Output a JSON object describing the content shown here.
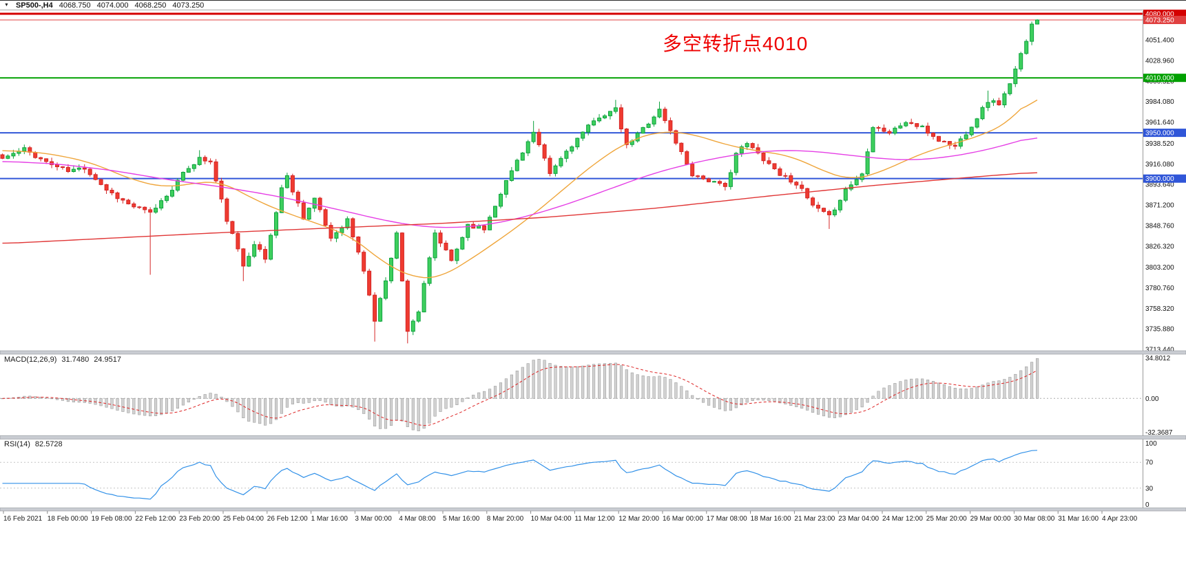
{
  "header": {
    "collapse_icon": "▼",
    "symbol_timeframe": "SP500-,H4",
    "open": "4068.750",
    "high": "4074.000",
    "low": "4068.250",
    "close": "4073.250"
  },
  "annotation": {
    "text": "多空转折点4010",
    "color": "#ee0000"
  },
  "price_axis": {
    "ticks": [
      "4051.400",
      "4028.960",
      "4006.520",
      "3984.080",
      "3961.640",
      "3938.520",
      "3916.080",
      "3893.640",
      "3871.200",
      "3848.760",
      "3826.320",
      "3803.200",
      "3780.760",
      "3758.320",
      "3735.880",
      "3713.440"
    ]
  },
  "levels": [
    {
      "name": "resistance-4080",
      "price": 4080.0,
      "label": "4080.000",
      "color": "#d40000",
      "width": 3
    },
    {
      "name": "current-price",
      "price": 4073.25,
      "label": "4073.250",
      "color": "#e04040",
      "width": 1
    },
    {
      "name": "pivot-4010",
      "price": 4010.0,
      "label": "4010.000",
      "color": "#00a000",
      "width": 2
    },
    {
      "name": "support-3950",
      "price": 3950.0,
      "label": "3950.000",
      "color": "#3056d8",
      "width": 2
    },
    {
      "name": "support-3900",
      "price": 3900.0,
      "label": "3900.000",
      "color": "#3056d8",
      "width": 2
    }
  ],
  "chart_data": {
    "type": "candlestick",
    "symbol": "SP500-",
    "timeframe": "H4",
    "visible_price_range": [
      3712,
      4083
    ],
    "n_candles": 190,
    "last_candle": {
      "open": 4068.75,
      "high": 4074.0,
      "low": 4068.25,
      "close": 4073.25
    },
    "close_waypoints": [
      [
        0,
        3922
      ],
      [
        4,
        3932
      ],
      [
        8,
        3918
      ],
      [
        12,
        3908
      ],
      [
        15,
        3912
      ],
      [
        19,
        3888
      ],
      [
        23,
        3872
      ],
      [
        27,
        3862
      ],
      [
        30,
        3882
      ],
      [
        34,
        3912
      ],
      [
        36,
        3922
      ],
      [
        38,
        3918
      ],
      [
        41,
        3855
      ],
      [
        44,
        3805
      ],
      [
        46,
        3830
      ],
      [
        48,
        3812
      ],
      [
        51,
        3890
      ],
      [
        52,
        3902
      ],
      [
        55,
        3858
      ],
      [
        57,
        3878
      ],
      [
        60,
        3835
      ],
      [
        63,
        3855
      ],
      [
        66,
        3800
      ],
      [
        68,
        3745
      ],
      [
        70,
        3790
      ],
      [
        72,
        3840
      ],
      [
        74,
        3735
      ],
      [
        76,
        3755
      ],
      [
        79,
        3840
      ],
      [
        82,
        3810
      ],
      [
        85,
        3850
      ],
      [
        88,
        3845
      ],
      [
        91,
        3885
      ],
      [
        94,
        3920
      ],
      [
        97,
        3950
      ],
      [
        100,
        3905
      ],
      [
        103,
        3930
      ],
      [
        106,
        3950
      ],
      [
        109,
        3968
      ],
      [
        112,
        3975
      ],
      [
        114,
        3935
      ],
      [
        117,
        3955
      ],
      [
        120,
        3975
      ],
      [
        123,
        3940
      ],
      [
        126,
        3905
      ],
      [
        129,
        3898
      ],
      [
        132,
        3890
      ],
      [
        134,
        3928
      ],
      [
        136,
        3938
      ],
      [
        139,
        3922
      ],
      [
        142,
        3905
      ],
      [
        145,
        3895
      ],
      [
        148,
        3870
      ],
      [
        151,
        3858
      ],
      [
        154,
        3888
      ],
      [
        157,
        3905
      ],
      [
        159,
        3958
      ],
      [
        162,
        3950
      ],
      [
        165,
        3962
      ],
      [
        168,
        3955
      ],
      [
        171,
        3942
      ],
      [
        174,
        3935
      ],
      [
        177,
        3958
      ],
      [
        180,
        3985
      ],
      [
        182,
        3982
      ],
      [
        184,
        4002
      ],
      [
        186,
        4035
      ],
      [
        188,
        4068.75
      ],
      [
        189,
        4073.25
      ]
    ],
    "wick_low_overrides": [
      [
        27,
        3795
      ],
      [
        44,
        3788
      ],
      [
        68,
        3722
      ],
      [
        74,
        3720
      ],
      [
        151,
        3845
      ]
    ],
    "wick_high_overrides": [
      [
        36,
        3931
      ],
      [
        97,
        3963
      ],
      [
        112,
        3986
      ],
      [
        120,
        3984
      ],
      [
        180,
        3996
      ]
    ],
    "moving_averages": [
      {
        "name": "ma-fast-orange",
        "color": "#efa53a",
        "waypoints": [
          [
            0,
            3931
          ],
          [
            8,
            3928
          ],
          [
            16,
            3918
          ],
          [
            24,
            3898
          ],
          [
            30,
            3890
          ],
          [
            36,
            3896
          ],
          [
            40,
            3897
          ],
          [
            46,
            3877
          ],
          [
            52,
            3862
          ],
          [
            58,
            3850
          ],
          [
            64,
            3836
          ],
          [
            70,
            3806
          ],
          [
            76,
            3790
          ],
          [
            80,
            3792
          ],
          [
            84,
            3806
          ],
          [
            90,
            3830
          ],
          [
            96,
            3856
          ],
          [
            102,
            3886
          ],
          [
            108,
            3916
          ],
          [
            114,
            3940
          ],
          [
            120,
            3952
          ],
          [
            126,
            3949
          ],
          [
            132,
            3937
          ],
          [
            138,
            3930
          ],
          [
            144,
            3925
          ],
          [
            150,
            3908
          ],
          [
            155,
            3898
          ],
          [
            160,
            3906
          ],
          [
            165,
            3920
          ],
          [
            170,
            3932
          ],
          [
            175,
            3940
          ],
          [
            180,
            3950
          ],
          [
            184,
            3962
          ],
          [
            189,
            3996
          ]
        ]
      },
      {
        "name": "ma-mid-magenta",
        "color": "#e53ee5",
        "waypoints": [
          [
            0,
            3919
          ],
          [
            10,
            3916
          ],
          [
            20,
            3909
          ],
          [
            30,
            3899
          ],
          [
            40,
            3891
          ],
          [
            50,
            3881
          ],
          [
            60,
            3868
          ],
          [
            70,
            3854
          ],
          [
            76,
            3848
          ],
          [
            82,
            3846
          ],
          [
            88,
            3849
          ],
          [
            94,
            3856
          ],
          [
            100,
            3866
          ],
          [
            106,
            3878
          ],
          [
            112,
            3891
          ],
          [
            118,
            3904
          ],
          [
            124,
            3914
          ],
          [
            130,
            3922
          ],
          [
            136,
            3928
          ],
          [
            142,
            3931
          ],
          [
            148,
            3930
          ],
          [
            154,
            3926
          ],
          [
            160,
            3922
          ],
          [
            166,
            3920
          ],
          [
            172,
            3923
          ],
          [
            178,
            3929
          ],
          [
            184,
            3938
          ],
          [
            189,
            3947
          ]
        ]
      },
      {
        "name": "ma-slow-red",
        "color": "#e03535",
        "waypoints": [
          [
            0,
            3829
          ],
          [
            20,
            3835
          ],
          [
            40,
            3841
          ],
          [
            60,
            3846
          ],
          [
            80,
            3851
          ],
          [
            100,
            3858
          ],
          [
            120,
            3868
          ],
          [
            140,
            3881
          ],
          [
            150,
            3887
          ],
          [
            160,
            3893
          ],
          [
            170,
            3898
          ],
          [
            180,
            3903
          ],
          [
            189,
            3907
          ]
        ]
      }
    ],
    "time_labels": [
      "16 Feb 2021",
      "18 Feb 00:00",
      "19 Feb 08:00",
      "22 Feb 12:00",
      "23 Feb 20:00",
      "25 Feb 04:00",
      "26 Feb 12:00",
      "1 Mar 16:00",
      "3 Mar 00:00",
      "4 Mar 08:00",
      "5 Mar 16:00",
      "8 Mar 20:00",
      "10 Mar 04:00",
      "11 Mar 12:00",
      "12 Mar 20:00",
      "16 Mar 00:00",
      "17 Mar 08:00",
      "18 Mar 16:00",
      "21 Mar 23:00",
      "23 Mar 04:00",
      "24 Mar 12:00",
      "25 Mar 20:00",
      "29 Mar 00:00",
      "30 Mar 08:00",
      "31 Mar 16:00",
      "4 Apr 23:00"
    ],
    "indicators": {
      "macd": {
        "label": "MACD(12,26,9)",
        "main_value": "31.7480",
        "signal_value": "24.9517",
        "axis_max": "34.8012",
        "axis_zero": "0.00",
        "axis_min": "-32.3687",
        "fast": 12,
        "slow": 26,
        "signal": 9
      },
      "rsi": {
        "label": "RSI(14)",
        "value": "82.5728",
        "period": 14,
        "axis": [
          "100",
          "70",
          "30",
          "0"
        ],
        "levels": [
          70,
          30
        ]
      }
    }
  },
  "colors": {
    "bull": "#0ca13c",
    "bull_fill": "#3ecf5e",
    "bear": "#d42525",
    "bear_fill": "#ef3b30",
    "macd_hist": "#d2d2d2",
    "macd_hist_stroke": "#8f8f8f",
    "macd_signal": "#dd2222",
    "rsi_line": "#3090e8",
    "axis_text": "#111111",
    "divider": "#c9ccd2"
  }
}
